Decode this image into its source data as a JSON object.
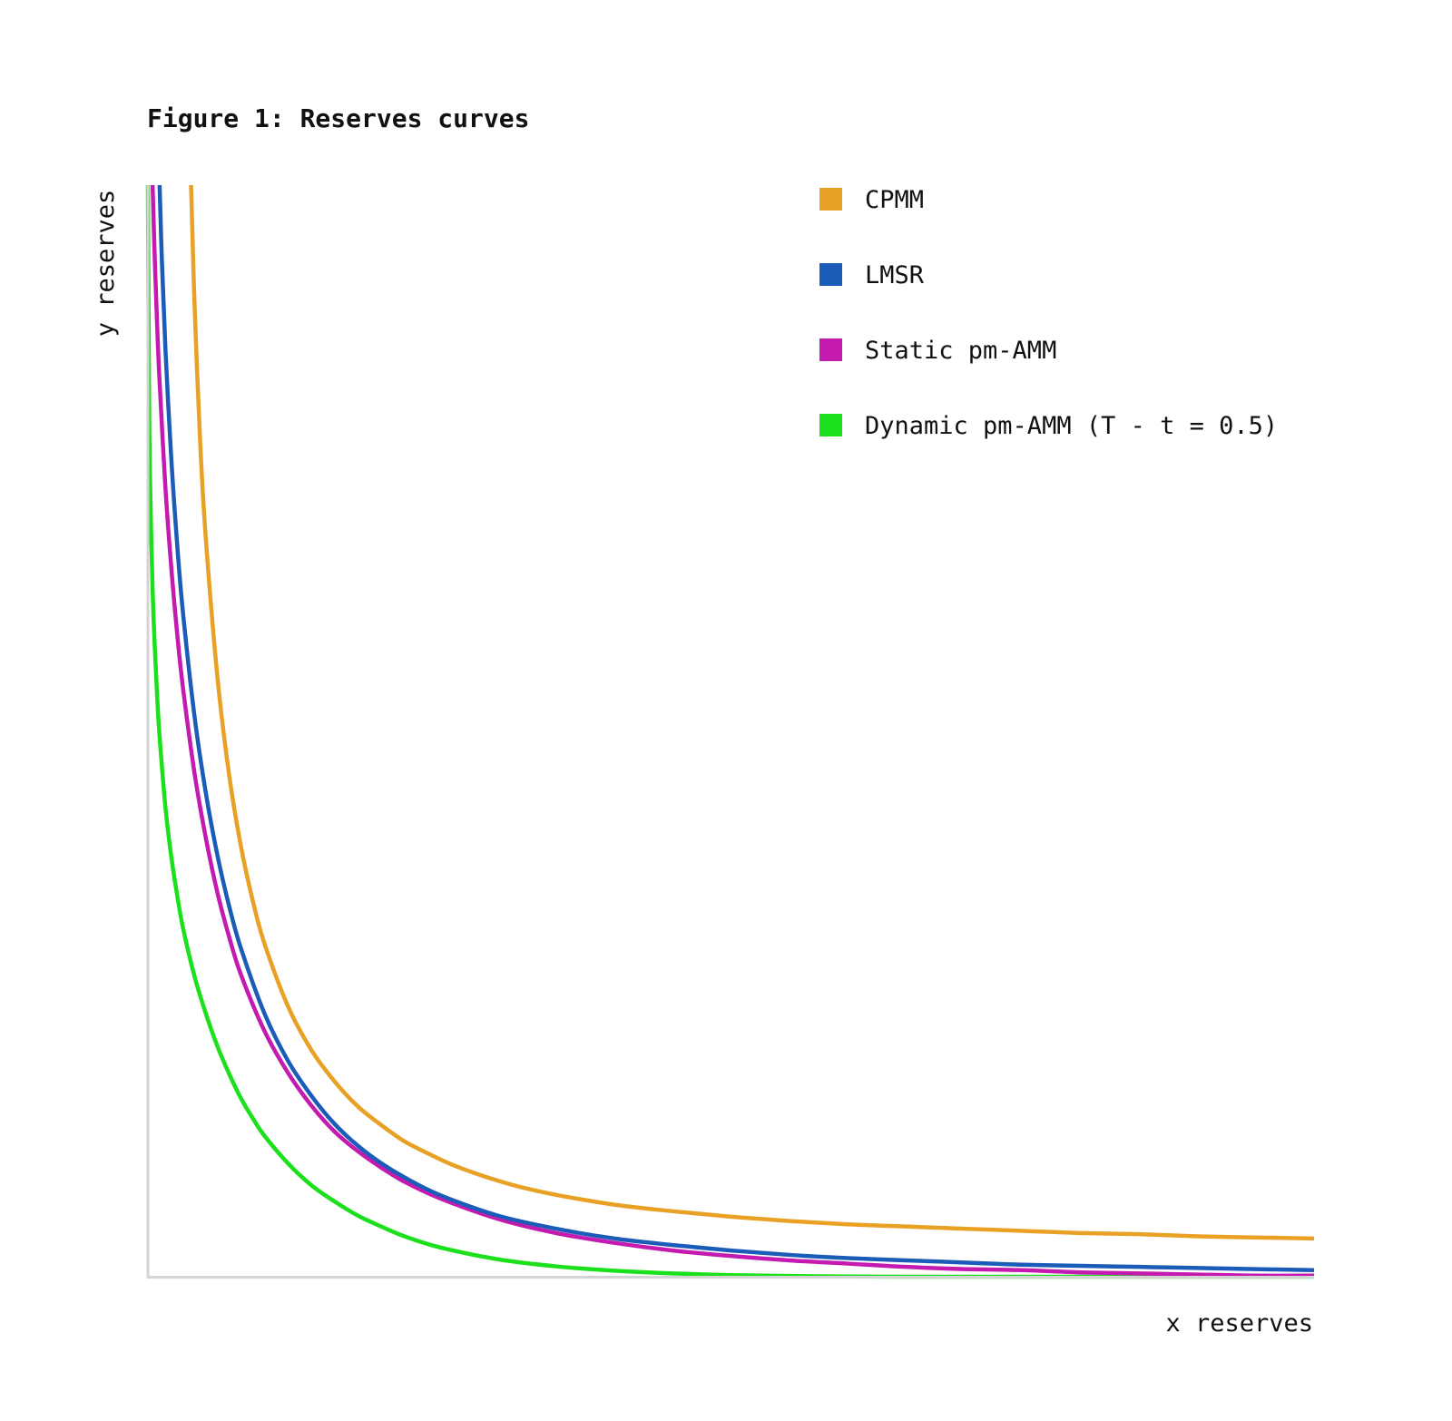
{
  "chart_data": {
    "type": "line",
    "title": "Figure 1: Reserves curves",
    "xlabel": "x reserves",
    "ylabel": "y reserves",
    "xlim": [
      0,
      1
    ],
    "ylim": [
      0,
      1
    ],
    "grid": false,
    "legend_position": "top-right",
    "series": [
      {
        "name": "CPMM",
        "color": "#E8A025",
        "x": [
          0.037,
          0.04,
          0.045,
          0.05,
          0.06,
          0.07,
          0.08,
          0.09,
          0.1,
          0.12,
          0.14,
          0.16,
          0.18,
          0.2,
          0.22,
          0.24,
          0.26,
          0.28,
          0.3,
          0.32,
          0.35,
          0.4,
          0.45,
          0.5,
          0.55,
          0.6,
          0.65,
          0.7,
          0.75,
          0.8,
          0.85,
          0.9,
          0.95,
          1.0
        ],
        "y": [
          1.0,
          0.89,
          0.76,
          0.671,
          0.545,
          0.457,
          0.393,
          0.344,
          0.305,
          0.248,
          0.208,
          0.179,
          0.156,
          0.139,
          0.124,
          0.113,
          0.103,
          0.095,
          0.088,
          0.082,
          0.075,
          0.066,
          0.06,
          0.055,
          0.051,
          0.048,
          0.046,
          0.044,
          0.042,
          0.04,
          0.039,
          0.037,
          0.036,
          0.035
        ]
      },
      {
        "name": "LMSR",
        "color": "#1A5CB8",
        "x": [
          0.01,
          0.012,
          0.015,
          0.02,
          0.025,
          0.03,
          0.04,
          0.05,
          0.06,
          0.07,
          0.08,
          0.1,
          0.12,
          0.14,
          0.16,
          0.18,
          0.2,
          0.22,
          0.25,
          0.3,
          0.35,
          0.4,
          0.45,
          0.5,
          0.55,
          0.6,
          0.65,
          0.7,
          0.75,
          0.8,
          0.85,
          0.9,
          0.95,
          1.0
        ],
        "y": [
          1.0,
          0.93,
          0.85,
          0.75,
          0.672,
          0.609,
          0.513,
          0.441,
          0.384,
          0.338,
          0.3,
          0.241,
          0.198,
          0.166,
          0.14,
          0.12,
          0.104,
          0.091,
          0.075,
          0.056,
          0.044,
          0.035,
          0.029,
          0.024,
          0.02,
          0.017,
          0.015,
          0.013,
          0.011,
          0.01,
          0.009,
          0.008,
          0.007,
          0.006
        ]
      },
      {
        "name": "Static pm-AMM",
        "color": "#C41AB0",
        "x": [
          0.004,
          0.006,
          0.008,
          0.01,
          0.015,
          0.02,
          0.025,
          0.03,
          0.04,
          0.05,
          0.06,
          0.07,
          0.08,
          0.1,
          0.12,
          0.14,
          0.16,
          0.18,
          0.2,
          0.22,
          0.25,
          0.3,
          0.35,
          0.4,
          0.45,
          0.5,
          0.55,
          0.6,
          0.65,
          0.7,
          0.75,
          0.8,
          0.85,
          0.9,
          0.95,
          1.0
        ],
        "y": [
          1.0,
          0.928,
          0.869,
          0.82,
          0.723,
          0.65,
          0.59,
          0.54,
          0.461,
          0.4,
          0.35,
          0.31,
          0.276,
          0.225,
          0.187,
          0.157,
          0.133,
          0.115,
          0.1,
          0.087,
          0.072,
          0.053,
          0.04,
          0.031,
          0.024,
          0.019,
          0.015,
          0.012,
          0.009,
          0.007,
          0.006,
          0.004,
          0.003,
          0.002,
          0.001,
          0.001
        ]
      },
      {
        "name": "Dynamic pm-AMM (T - t = 0.5)",
        "color": "#1BE01B",
        "x": [
          0.0,
          0.001,
          0.002,
          0.004,
          0.006,
          0.008,
          0.01,
          0.015,
          0.02,
          0.025,
          0.03,
          0.04,
          0.05,
          0.06,
          0.07,
          0.08,
          0.09,
          0.1,
          0.12,
          0.14,
          0.16,
          0.18,
          0.2,
          0.22,
          0.25,
          0.3,
          0.35,
          0.4,
          0.45,
          0.5,
          0.55,
          0.6,
          0.65,
          0.7,
          0.8,
          0.9,
          1.0
        ],
        "y": [
          1.0,
          0.8,
          0.72,
          0.63,
          0.574,
          0.53,
          0.495,
          0.43,
          0.385,
          0.35,
          0.32,
          0.275,
          0.24,
          0.21,
          0.185,
          0.163,
          0.145,
          0.129,
          0.104,
          0.084,
          0.069,
          0.056,
          0.046,
          0.037,
          0.027,
          0.016,
          0.0095,
          0.0055,
          0.003,
          0.0015,
          0.0007,
          0.0002,
          0.0,
          0.0,
          0.0,
          0.0,
          0.0
        ]
      }
    ]
  }
}
